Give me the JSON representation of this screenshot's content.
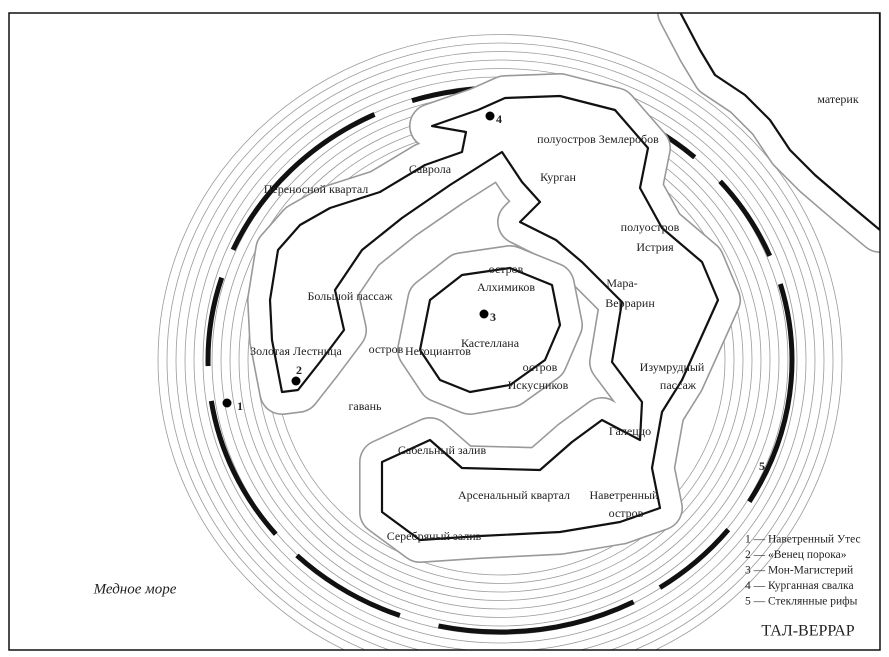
{
  "title": "ТАЛ-ВЕРРАР",
  "sea": "Медное море",
  "labels": [
    {
      "lines": [
        "материк"
      ]
    },
    {
      "lines": [
        "полуостров Землеробов"
      ]
    },
    {
      "lines": [
        "Курган"
      ]
    },
    {
      "lines": [
        "Саврола"
      ]
    },
    {
      "lines": [
        "Переносной квартал"
      ]
    },
    {
      "lines": [
        "полуостров",
        "Истрия"
      ]
    },
    {
      "lines": [
        "Мара-",
        "Веррарин"
      ]
    },
    {
      "lines": [
        "остров",
        "Алхимиков"
      ]
    },
    {
      "lines": [
        "Большой пассаж"
      ]
    },
    {
      "lines": [
        "остров",
        "Негоциантов"
      ]
    },
    {
      "lines": [
        "Кастеллана"
      ]
    },
    {
      "lines": [
        "остров",
        "Искусников"
      ]
    },
    {
      "lines": [
        "Золотая Лестница"
      ]
    },
    {
      "lines": [
        "гавань"
      ]
    },
    {
      "lines": [
        "Изумрудный",
        "пассаж"
      ]
    },
    {
      "lines": [
        "Галеццо"
      ]
    },
    {
      "lines": [
        "Сабельный  залив"
      ]
    },
    {
      "lines": [
        "Арсенальный квартал"
      ]
    },
    {
      "lines": [
        "Наветренный",
        "остров"
      ]
    },
    {
      "lines": [
        "Серебряный  залив"
      ]
    }
  ],
  "markers": [
    "1",
    "2",
    "3",
    "4",
    "5"
  ],
  "legend": [
    "1 — Наветренный Утес",
    "2 — «Венец порока»",
    "3 — Мон-Магистерий",
    "4 — Курганная свалка",
    "5 — Стеклянные рифы"
  ]
}
